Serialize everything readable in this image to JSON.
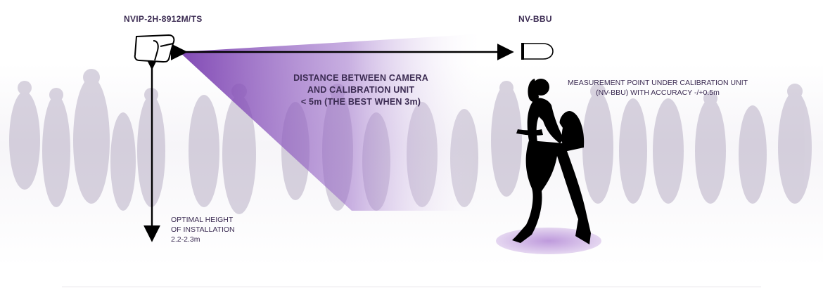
{
  "camera": {
    "model": "NVIP-2H-8912M/TS"
  },
  "calibration_unit": {
    "model": "NV-BBU"
  },
  "distance_note": {
    "line1": "DISTANCE BETWEEN CAMERA",
    "line2": "AND CALIBRATION UNIT",
    "line3": "< 5m (THE BEST WHEN 3m)"
  },
  "measurement_note": {
    "line1": "MEASUREMENT POINT UNDER CALIBRATION UNIT",
    "line2": "(NV-BBU) WITH ACCURACY -/+0.5m"
  },
  "height_note": {
    "line1": "OPTIMAL HEIGHT",
    "line2": "OF INSTALLATION",
    "line3": "2.2-2.3m"
  },
  "colors": {
    "accent": "#7a3fb0",
    "text": "#3b2b52",
    "crowd": "#b9b0c6"
  }
}
